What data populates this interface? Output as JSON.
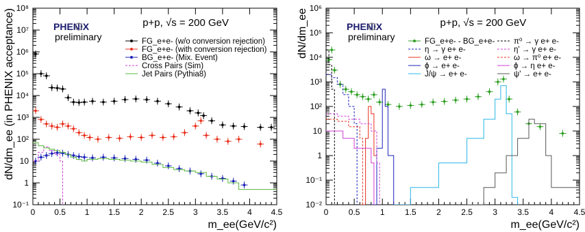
{
  "chart_data": [
    {
      "type": "scatter",
      "title": "p+p, √s = 200 GeV",
      "logo": {
        "name": "PHENIX",
        "sub": "preliminary"
      },
      "xlabel": "m_ee(GeV/c²)",
      "ylabel": "dN/dm_ee (in PHENIX acceptance)",
      "xlim": [
        0,
        4.5
      ],
      "ylim": [
        0.1,
        100000000
      ],
      "log_y": true,
      "x_ticks": [
        "0",
        "0.5",
        "1",
        "1.5",
        "2",
        "2.5",
        "3",
        "3.5",
        "4",
        "4.5"
      ],
      "y_ticks": [
        "10⁻¹",
        "1",
        "10",
        "10²",
        "10³",
        "10⁴",
        "10⁵",
        "10⁶",
        "10⁷",
        "10⁸"
      ],
      "legend_position": "top-right",
      "series": [
        {
          "name": "FG_e+e- (w/o conversion rejection)",
          "color": "#000000",
          "style": "points",
          "points": [
            [
              0.05,
              800000
            ],
            [
              0.15,
              100000
            ],
            [
              0.25,
              80000
            ],
            [
              0.35,
              23000
            ],
            [
              0.45,
              22000
            ],
            [
              0.55,
              20000
            ],
            [
              0.65,
              8000
            ],
            [
              0.75,
              5000
            ],
            [
              0.85,
              4800
            ],
            [
              0.95,
              5000
            ],
            [
              1.1,
              5500
            ],
            [
              1.3,
              5000
            ],
            [
              1.5,
              5500
            ],
            [
              1.7,
              6500
            ],
            [
              1.9,
              7000
            ],
            [
              2.1,
              6500
            ],
            [
              2.3,
              5500
            ],
            [
              2.5,
              4200
            ],
            [
              2.7,
              3000
            ],
            [
              2.9,
              2000
            ],
            [
              3.05,
              1600
            ],
            [
              3.15,
              1200
            ],
            [
              3.3,
              700
            ],
            [
              3.5,
              450
            ],
            [
              3.7,
              400
            ],
            [
              3.9,
              380
            ],
            [
              4.2,
              350
            ],
            [
              4.4,
              350
            ]
          ]
        },
        {
          "name": "FG_e+e- (with conversion rejection)",
          "color": "#e8301c",
          "style": "points",
          "points": [
            [
              0.05,
              2000
            ],
            [
              0.15,
              800
            ],
            [
              0.25,
              500
            ],
            [
              0.35,
              400
            ],
            [
              0.45,
              350
            ],
            [
              0.55,
              500
            ],
            [
              0.65,
              400
            ],
            [
              0.75,
              300
            ],
            [
              0.85,
              200
            ],
            [
              0.95,
              150
            ],
            [
              1.05,
              120
            ],
            [
              1.2,
              100
            ],
            [
              1.4,
              120
            ],
            [
              1.6,
              110
            ],
            [
              1.8,
              130
            ],
            [
              2.0,
              120
            ],
            [
              2.2,
              150
            ],
            [
              2.4,
              120
            ],
            [
              2.6,
              130
            ],
            [
              2.8,
              200
            ],
            [
              3.0,
              400
            ],
            [
              3.1,
              700
            ],
            [
              3.2,
              150
            ],
            [
              3.4,
              100
            ],
            [
              3.6,
              80
            ],
            [
              3.8,
              100
            ],
            [
              4.2,
              60
            ]
          ]
        },
        {
          "name": "BG_e+e- (Mix. Event)",
          "color": "#1b22b8",
          "style": "points",
          "points": [
            [
              0.05,
              10
            ],
            [
              0.15,
              15
            ],
            [
              0.25,
              18
            ],
            [
              0.35,
              22
            ],
            [
              0.45,
              24
            ],
            [
              0.55,
              23
            ],
            [
              0.65,
              20
            ],
            [
              0.75,
              18
            ],
            [
              0.85,
              16
            ],
            [
              0.95,
              15
            ],
            [
              1.1,
              14
            ],
            [
              1.3,
              15
            ],
            [
              1.5,
              14
            ],
            [
              1.7,
              13
            ],
            [
              1.9,
              12
            ],
            [
              2.1,
              11
            ],
            [
              2.3,
              8
            ],
            [
              2.5,
              6
            ],
            [
              2.7,
              4.5
            ],
            [
              2.9,
              3.5
            ],
            [
              3.1,
              2.6
            ],
            [
              3.3,
              2
            ],
            [
              3.5,
              1.6
            ],
            [
              3.7,
              1.2
            ],
            [
              3.9,
              0.8
            ]
          ]
        },
        {
          "name": "Cross Pairs (Sim)",
          "color": "#d23fd6",
          "style": "step-dashed",
          "points": [
            [
              0.0,
              10
            ],
            [
              0.1,
              25
            ],
            [
              0.2,
              45
            ],
            [
              0.3,
              30
            ],
            [
              0.4,
              20
            ],
            [
              0.5,
              10
            ],
            [
              0.55,
              0.1
            ]
          ]
        },
        {
          "name": "Jet Pairs (Pythia8)",
          "color": "#58b83c",
          "style": "step",
          "points": [
            [
              0.0,
              70
            ],
            [
              0.1,
              50
            ],
            [
              0.2,
              40
            ],
            [
              0.3,
              35
            ],
            [
              0.4,
              30
            ],
            [
              0.5,
              25
            ],
            [
              0.6,
              20
            ],
            [
              0.7,
              15
            ],
            [
              0.8,
              12
            ],
            [
              0.9,
              10
            ],
            [
              1.0,
              12
            ],
            [
              1.2,
              13
            ],
            [
              1.4,
              12
            ],
            [
              1.6,
              11
            ],
            [
              1.8,
              10
            ],
            [
              2.0,
              9
            ],
            [
              2.2,
              7
            ],
            [
              2.4,
              5
            ],
            [
              2.6,
              4
            ],
            [
              2.8,
              3.5
            ],
            [
              3.0,
              3
            ],
            [
              3.2,
              2
            ],
            [
              3.4,
              1.5
            ],
            [
              3.6,
              1
            ],
            [
              3.8,
              0.5
            ],
            [
              4.5,
              0.5
            ]
          ]
        }
      ]
    },
    {
      "type": "line",
      "title": "p+p, √s = 200 GeV",
      "logo": {
        "name": "PHENIX",
        "sub": "preliminary"
      },
      "xlabel": "m_ee(GeV/c²)",
      "ylabel": "dN/dm_ee",
      "xlim": [
        0,
        4.5
      ],
      "ylim": [
        0.01,
        1000000
      ],
      "log_y": true,
      "x_ticks": [
        "0",
        "0.5",
        "1",
        "1.5",
        "2",
        "2.5",
        "3",
        "3.5",
        "4",
        "4.5"
      ],
      "y_ticks": [
        "10⁻²",
        "10⁻¹",
        "1",
        "10",
        "10²",
        "10³",
        "10⁴",
        "10⁵",
        "10⁶"
      ],
      "legend_position": "top-right",
      "series": [
        {
          "name": "FG_e+e- - BG_e+e-",
          "color": "#2b9e1f",
          "style": "points",
          "points": [
            [
              0.05,
              8000
            ],
            [
              0.1,
              20000
            ],
            [
              0.15,
              3000
            ],
            [
              0.25,
              800
            ],
            [
              0.35,
              500
            ],
            [
              0.45,
              400
            ],
            [
              0.55,
              300
            ],
            [
              0.65,
              250
            ],
            [
              0.75,
              200
            ],
            [
              0.85,
              300
            ],
            [
              0.95,
              150
            ],
            [
              1.1,
              120
            ],
            [
              1.3,
              100
            ],
            [
              1.5,
              110
            ],
            [
              1.7,
              120
            ],
            [
              1.9,
              150
            ],
            [
              2.1,
              160
            ],
            [
              2.3,
              180
            ],
            [
              2.5,
              200
            ],
            [
              2.7,
              250
            ],
            [
              2.9,
              400
            ],
            [
              3.05,
              1000
            ],
            [
              3.15,
              1300
            ],
            [
              3.25,
              200
            ],
            [
              3.4,
              60
            ],
            [
              3.6,
              20
            ],
            [
              3.8,
              15
            ],
            [
              4.2,
              8
            ]
          ]
        },
        {
          "name": "η → γ e+ e-",
          "color": "#1b22b8",
          "style": "step-dashed",
          "points": [
            [
              0.0,
              2000
            ],
            [
              0.1,
              1500
            ],
            [
              0.2,
              800
            ],
            [
              0.3,
              300
            ],
            [
              0.4,
              100
            ],
            [
              0.5,
              20
            ],
            [
              0.55,
              0.01
            ]
          ]
        },
        {
          "name": "ω → e+ e-",
          "color": "#e8301c",
          "style": "step",
          "points": [
            [
              0.6,
              0.01
            ],
            [
              0.7,
              5
            ],
            [
              0.75,
              100
            ],
            [
              0.8,
              50
            ],
            [
              0.85,
              1
            ],
            [
              0.9,
              0.01
            ]
          ]
        },
        {
          "name": "ϕ → e+ e-",
          "color": "#1b22b8",
          "style": "step",
          "points": [
            [
              0.8,
              0.01
            ],
            [
              0.9,
              2
            ],
            [
              1.0,
              500
            ],
            [
              1.05,
              100
            ],
            [
              1.1,
              1
            ],
            [
              1.2,
              0.01
            ]
          ]
        },
        {
          "name": "J/ψ → e+ e-",
          "color": "#29b6e8",
          "style": "step",
          "points": [
            [
              1.2,
              0.01
            ],
            [
              1.5,
              0.05
            ],
            [
              2.0,
              0.5
            ],
            [
              2.5,
              5
            ],
            [
              2.8,
              30
            ],
            [
              3.0,
              200
            ],
            [
              3.1,
              700
            ],
            [
              3.2,
              50
            ],
            [
              3.3,
              0.02
            ],
            [
              3.4,
              0.01
            ]
          ]
        },
        {
          "name": "π⁰ → γ e+ e-",
          "color": "#000000",
          "style": "step-dashed",
          "points": [
            [
              0.0,
              20000
            ],
            [
              0.05,
              5000
            ],
            [
              0.1,
              500
            ],
            [
              0.15,
              0.01
            ]
          ]
        },
        {
          "name": "η' → γ e+ e-",
          "color": "#d23fd6",
          "style": "step-dashed",
          "points": [
            [
              0.0,
              50
            ],
            [
              0.2,
              40
            ],
            [
              0.4,
              30
            ],
            [
              0.6,
              20
            ],
            [
              0.8,
              10
            ],
            [
              0.9,
              0.5
            ],
            [
              0.95,
              0.01
            ]
          ]
        },
        {
          "name": "ω → π⁰ e+ e-",
          "color": "#e8301c",
          "style": "step-dashed",
          "points": [
            [
              0.0,
              30
            ],
            [
              0.2,
              25
            ],
            [
              0.4,
              15
            ],
            [
              0.6,
              5
            ],
            [
              0.65,
              0.01
            ]
          ]
        },
        {
          "name": "ϕ → η e+ e-",
          "color": "#d23fd6",
          "style": "step",
          "points": [
            [
              0.0,
              10
            ],
            [
              0.3,
              5
            ],
            [
              0.5,
              2
            ],
            [
              0.8,
              0.5
            ],
            [
              0.85,
              0.01
            ]
          ]
        },
        {
          "name": "ψ' → e+ e-",
          "color": "#555555",
          "style": "step",
          "points": [
            [
              2.5,
              0.01
            ],
            [
              2.8,
              0.05
            ],
            [
              3.0,
              0.2
            ],
            [
              3.2,
              1
            ],
            [
              3.4,
              5
            ],
            [
              3.6,
              30
            ],
            [
              3.7,
              20
            ],
            [
              3.9,
              1
            ],
            [
              4.0,
              0.05
            ],
            [
              4.5,
              0.05
            ]
          ]
        }
      ]
    }
  ]
}
